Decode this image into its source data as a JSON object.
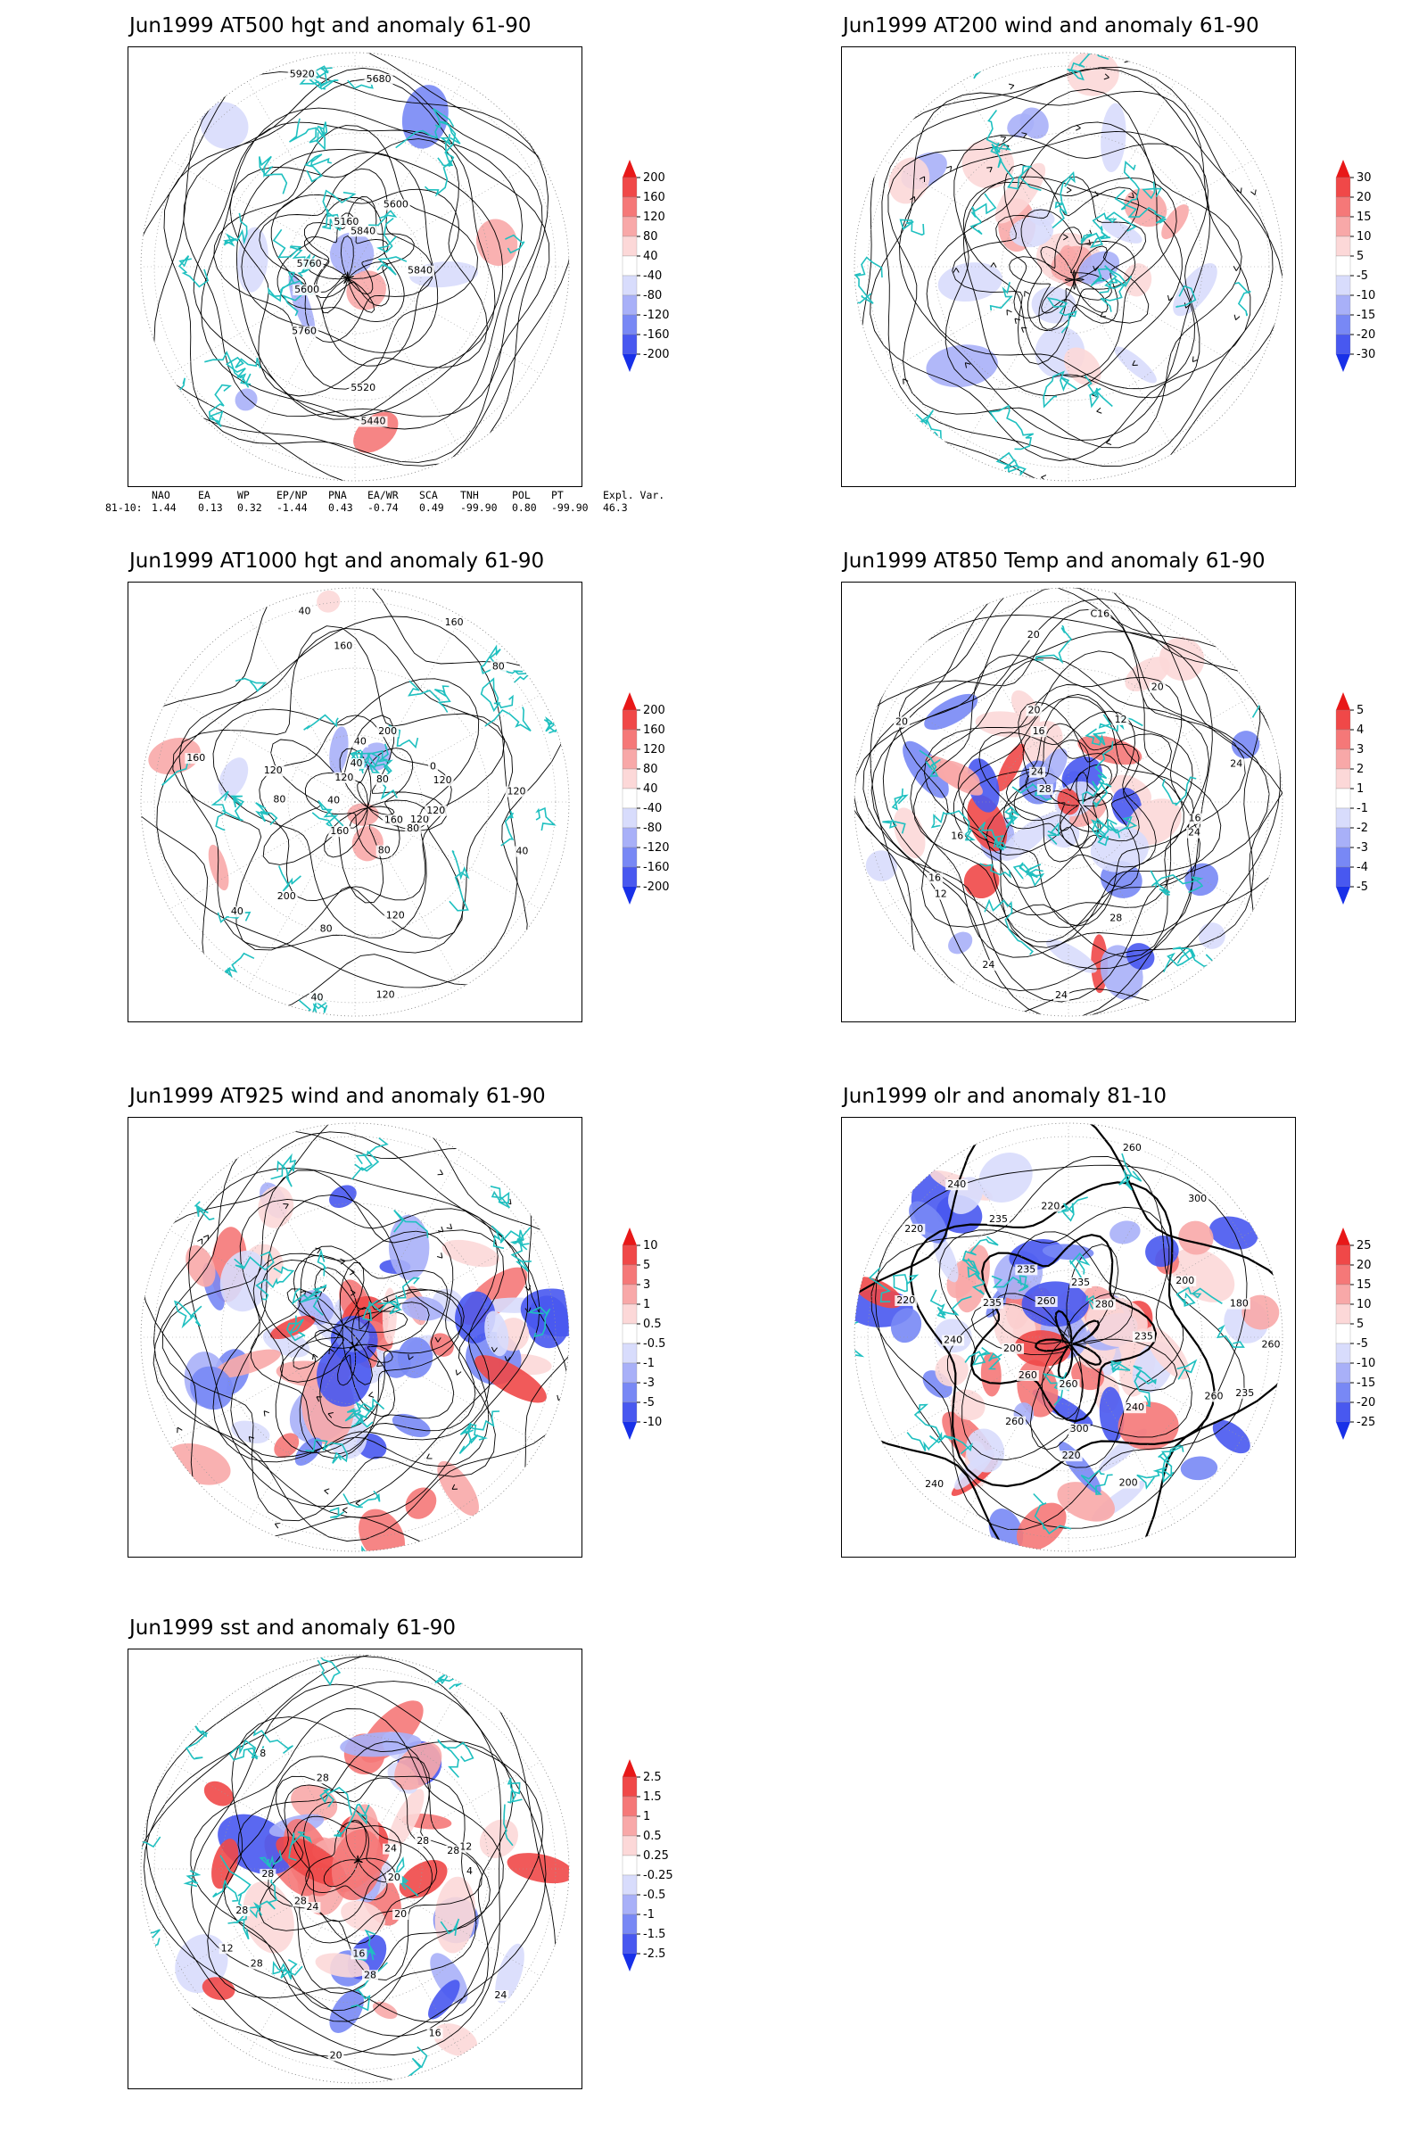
{
  "panels": [
    {
      "id": "p1",
      "title": "Jun1999 AT500 hgt and anomaly 61-90",
      "colorbar": [
        "200",
        "160",
        "120",
        "80",
        "40",
        "-40",
        "-80",
        "-120",
        "-160",
        "-200"
      ],
      "contour_labels": [
        "5600",
        "5840",
        "5160",
        "5440",
        "5520",
        "5680",
        "5600",
        "5760",
        "5760",
        "5840",
        "5920"
      ]
    },
    {
      "id": "p2",
      "title": "Jun1999 AT200 wind and anomaly 61-90",
      "colorbar": [
        "30",
        "20",
        "15",
        "10",
        "5",
        "-5",
        "-10",
        "-15",
        "-20",
        "-30"
      ],
      "contour_labels": []
    },
    {
      "id": "p3",
      "title": "Jun1999 AT1000 hgt and anomaly 61-90",
      "colorbar": [
        "200",
        "160",
        "120",
        "80",
        "40",
        "-40",
        "-80",
        "-120",
        "-160",
        "-200"
      ],
      "contour_labels": [
        "120",
        "160",
        "160",
        "120",
        "200",
        "80",
        "80",
        "80",
        "40",
        "40",
        "160",
        "120",
        "80",
        "120",
        "40",
        "40",
        "40",
        "120",
        "160",
        "120",
        "200",
        "160",
        "120",
        "80",
        "0",
        "40",
        "120",
        "80",
        "40"
      ]
    },
    {
      "id": "p4",
      "title": "Jun1999 AT850 Temp and anomaly 61-90",
      "colorbar": [
        "5",
        "4",
        "3",
        "2",
        "1",
        "-1",
        "-2",
        "-3",
        "-4",
        "-5"
      ],
      "contour_labels": [
        "16",
        "12",
        "16",
        "24",
        "20",
        "20",
        "24",
        "12",
        "28",
        "24",
        "16",
        "24",
        "28",
        "20",
        "24",
        "16",
        "20",
        "C16"
      ]
    },
    {
      "id": "p5",
      "title": "Jun1999 AT925 wind and anomaly 61-90",
      "colorbar": [
        "10",
        "5",
        "3",
        "1",
        "0.5",
        "-0.5",
        "-1",
        "-3",
        "-5",
        "-10"
      ],
      "contour_labels": []
    },
    {
      "id": "p6",
      "title": "Jun1999 olr and anomaly 81-10",
      "colorbar": [
        "25",
        "20",
        "15",
        "10",
        "5",
        "-5",
        "-10",
        "-15",
        "-20",
        "-25"
      ],
      "contour_labels": [
        "260",
        "235",
        "260",
        "240",
        "235",
        "260",
        "220",
        "235",
        "200",
        "220",
        "240",
        "260",
        "260",
        "200",
        "180",
        "220",
        "235",
        "240",
        "260",
        "300",
        "280",
        "300",
        "220",
        "200",
        "235",
        "240",
        "260",
        "235"
      ]
    },
    {
      "id": "p7",
      "title": "Jun1999 sst and anomaly 61-90",
      "colorbar": [
        "2.5",
        "1.5",
        "1",
        "0.5",
        "0.25",
        "-0.25",
        "-0.5",
        "-1",
        "-1.5",
        "-2.5"
      ],
      "contour_labels": [
        "28",
        "28",
        "24",
        "20",
        "16",
        "12",
        "28",
        "24",
        "20",
        "16",
        "12",
        "8",
        "4",
        "28",
        "28",
        "28",
        "24",
        "20",
        "28",
        "28"
      ]
    }
  ],
  "teleconnections": {
    "headers": [
      "NAO",
      "EA",
      "WP",
      "EP/NP",
      "PNA",
      "EA/WR",
      "SCA",
      "TNH",
      "POL",
      "PT",
      "Expl. Var."
    ],
    "row_label": "81-10:",
    "values": [
      "1.44",
      "0.13",
      "0.32",
      "-1.44",
      "0.43",
      "-0.74",
      "0.49",
      "-99.90",
      "0.80",
      "-99.90",
      "46.3"
    ]
  },
  "colors": {
    "coast": "#1fc0c0",
    "contour": "#000000",
    "pos_strong": "#e8202a",
    "neg_strong": "#2040e8"
  }
}
